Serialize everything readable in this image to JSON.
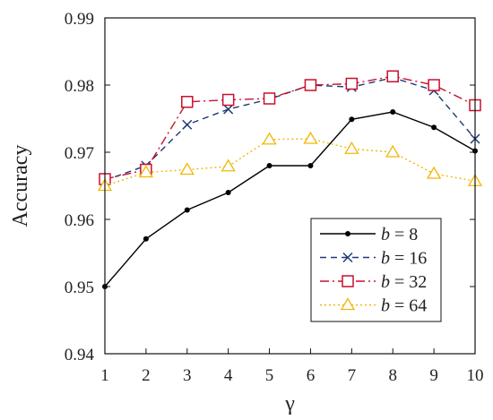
{
  "chart_data": {
    "type": "line",
    "xlabel": "γ",
    "ylabel": "Accuracy",
    "x": [
      1,
      2,
      3,
      4,
      5,
      6,
      7,
      8,
      9,
      10
    ],
    "xlim": [
      1,
      10
    ],
    "ylim": [
      0.94,
      0.99
    ],
    "yticks": [
      "0.94",
      "0.95",
      "0.96",
      "0.97",
      "0.98",
      "0.99"
    ],
    "xticks": [
      "1",
      "2",
      "3",
      "4",
      "5",
      "6",
      "7",
      "8",
      "9",
      "10"
    ],
    "grid": false,
    "legend_position": "bottom-right",
    "series": [
      {
        "name": "b = 8",
        "name_var": "b",
        "name_rest": " = 8",
        "color": "#000000",
        "line_style": "solid",
        "marker": "dot",
        "values": [
          0.95,
          0.9571,
          0.9614,
          0.964,
          0.968,
          0.968,
          0.9749,
          0.976,
          0.9737,
          0.9702
        ]
      },
      {
        "name": "b = 16",
        "name_var": "b",
        "name_rest": " = 16",
        "color": "#1f3a73",
        "line_style": "dashed",
        "marker": "x",
        "values": [
          0.9658,
          0.968,
          0.9741,
          0.9764,
          0.9779,
          0.98,
          0.9797,
          0.9811,
          0.9792,
          0.972
        ]
      },
      {
        "name": "b = 32",
        "name_var": "b",
        "name_rest": " = 32",
        "color": "#c8102e",
        "line_style": "dashdot",
        "marker": "square",
        "values": [
          0.966,
          0.9674,
          0.9775,
          0.9778,
          0.978,
          0.98,
          0.9802,
          0.9813,
          0.98,
          0.977
        ]
      },
      {
        "name": "b = 64",
        "name_var": "b",
        "name_rest": " = 64",
        "color": "#f2b705",
        "line_style": "dotted",
        "marker": "triangle",
        "values": [
          0.965,
          0.967,
          0.9674,
          0.9679,
          0.9719,
          0.972,
          0.9705,
          0.97,
          0.9668,
          0.9657
        ]
      }
    ]
  }
}
